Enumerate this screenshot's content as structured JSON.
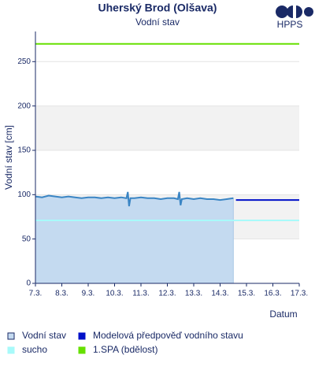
{
  "chart_data": {
    "type": "line",
    "title": "Uherský Brod (Olšava)",
    "subtitle": "Vodní stav",
    "logo": "HPPS",
    "x_label": "Datum",
    "y_label": "Vodní stav [cm]",
    "xlim": [
      7,
      17
    ],
    "xticks": [
      {
        "value": 7,
        "label": "7.3."
      },
      {
        "value": 8,
        "label": "8.3."
      },
      {
        "value": 9,
        "label": "9.3."
      },
      {
        "value": 10,
        "label": "10.3."
      },
      {
        "value": 11,
        "label": "11.3."
      },
      {
        "value": 12,
        "label": "12.3."
      },
      {
        "value": 13,
        "label": "13.3."
      },
      {
        "value": 14,
        "label": "14.3."
      },
      {
        "value": 15,
        "label": "15.3."
      },
      {
        "value": 16,
        "label": "16.3."
      },
      {
        "value": 17,
        "label": "17.3."
      }
    ],
    "ylim": [
      0,
      284
    ],
    "yticks": [
      0,
      50,
      100,
      150,
      200,
      250
    ],
    "series": [
      {
        "name": "Vodní stav",
        "color": "#3a85c4",
        "fill": "#c4daf0",
        "x": [
          7,
          7.25,
          7.5,
          7.75,
          8,
          8.25,
          8.5,
          8.75,
          9,
          9.25,
          9.5,
          9.75,
          10,
          10.25,
          10.45,
          10.5,
          10.55,
          10.6,
          10.75,
          11,
          11.25,
          11.5,
          11.75,
          12,
          12.25,
          12.4,
          12.45,
          12.5,
          12.55,
          12.75,
          13,
          13.25,
          13.5,
          13.75,
          14,
          14.25,
          14.5
        ],
        "values": [
          98,
          97,
          99,
          98,
          97,
          98,
          97,
          96,
          97,
          97,
          96,
          97,
          96,
          97,
          96,
          103,
          87,
          96,
          96,
          97,
          96,
          96,
          95,
          96,
          96,
          95,
          103,
          88,
          95,
          96,
          95,
          96,
          95,
          95,
          94,
          95,
          96
        ]
      },
      {
        "name": "Modelová předpověď vodního stavu",
        "color": "#0010c8",
        "x": [
          14.6,
          17
        ],
        "values": [
          94,
          94
        ]
      },
      {
        "name": "sucho",
        "color": "#a8fafa",
        "x": [
          7,
          17
        ],
        "values": [
          71,
          71
        ]
      },
      {
        "name": "1.SPA (bdělost)",
        "color": "#66e000",
        "x": [
          7,
          17
        ],
        "values": [
          270,
          270
        ]
      }
    ]
  }
}
